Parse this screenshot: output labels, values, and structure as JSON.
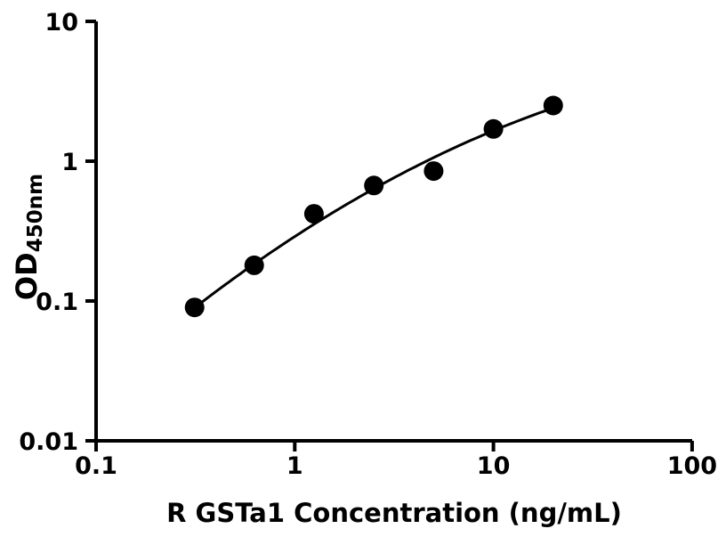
{
  "figure": {
    "background": "#ffffff",
    "ink": "#000000"
  },
  "chart_data": {
    "type": "scatter",
    "title": "",
    "xlabel": "R GSTa1 Concentration (ng/mL)",
    "ylabel_main": "OD",
    "ylabel_sub": "450nm",
    "x_scale": "log",
    "y_scale": "log",
    "xlim": [
      0.1,
      100
    ],
    "ylim": [
      0.01,
      10
    ],
    "x_ticks": [
      0.1,
      1,
      10,
      100
    ],
    "x_tick_labels": [
      "0.1",
      "1",
      "10",
      "100"
    ],
    "y_ticks": [
      0.01,
      0.1,
      1,
      10
    ],
    "y_tick_labels": [
      "0.01",
      "0.1",
      "1",
      "10"
    ],
    "grid": false,
    "legend": "none",
    "series": [
      {
        "name": "standard-curve-points",
        "marker": "circle",
        "color": "#000000",
        "x": [
          0.313,
          0.625,
          1.25,
          2.5,
          5,
          10,
          20
        ],
        "y": [
          0.09,
          0.18,
          0.42,
          0.67,
          0.85,
          1.7,
          2.5
        ]
      }
    ],
    "fit_curve": {
      "model": "quadratic-loglog",
      "coefficients": {
        "a": -0.539,
        "b": 0.9252,
        "c": -0.1681
      },
      "u_range": [
        -0.512,
        1.301
      ],
      "color": "#000000"
    }
  }
}
